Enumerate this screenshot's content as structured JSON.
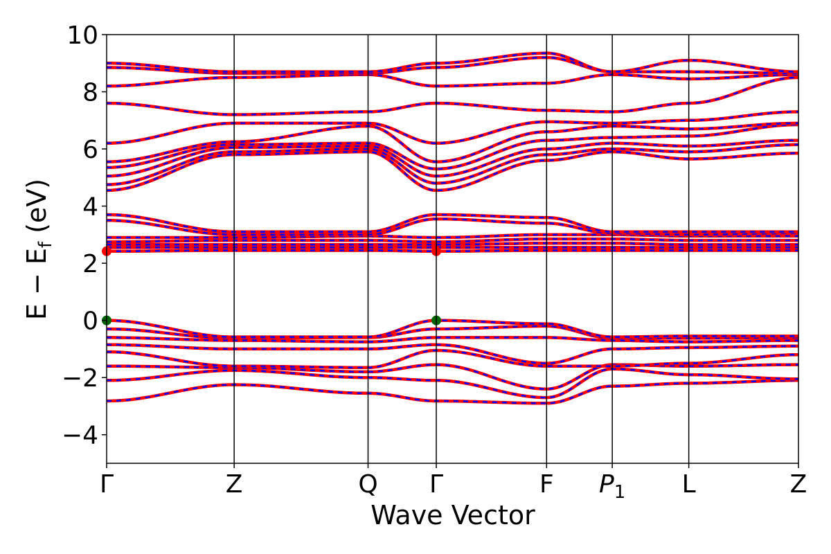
{
  "chart_data": {
    "type": "line",
    "xlabel": "Wave Vector",
    "ylabel": "E − E",
    "ylabel_subscript": "f",
    "ylabel_unit": " (eV)",
    "ylim": [
      -5,
      10
    ],
    "yticks": [
      -4,
      -2,
      0,
      2,
      4,
      6,
      8,
      10
    ],
    "ytick_labels": [
      "−4",
      "−2",
      "0",
      "2",
      "4",
      "6",
      "8",
      "10"
    ],
    "xlim": [
      0,
      10.85
    ],
    "kpoints": [
      {
        "label": "Γ",
        "x": 0
      },
      {
        "label": "Z",
        "x": 2.0
      },
      {
        "label": "Q",
        "x": 4.1
      },
      {
        "label": "Γ",
        "x": 5.17
      },
      {
        "label": "F",
        "x": 6.9
      },
      {
        "label": "P",
        "sub": "1",
        "x": 7.93
      },
      {
        "label": "L",
        "x": 9.13
      },
      {
        "label": "Z",
        "x": 10.85
      }
    ],
    "grid": false,
    "series_style": {
      "line_color": "#ff0000",
      "dash_color": "#0000ff"
    },
    "band_edges": [
      {
        "name": "cbm",
        "color": "#ff0000",
        "points": [
          [
            0,
            2.42
          ],
          [
            5.17,
            2.42
          ]
        ]
      },
      {
        "name": "vbm",
        "color": "#006400",
        "points": [
          [
            0,
            0.0
          ],
          [
            5.17,
            0.0
          ]
        ]
      }
    ],
    "series": [
      {
        "values": [
          [
            0,
            -2.82
          ],
          [
            2.0,
            -2.25
          ],
          [
            4.1,
            -2.55
          ],
          [
            5.17,
            -2.82
          ],
          [
            6.9,
            -2.9
          ],
          [
            7.93,
            -2.3
          ],
          [
            9.13,
            -2.2
          ],
          [
            10.85,
            -2.1
          ]
        ]
      },
      {
        "values": [
          [
            0,
            -2.1
          ],
          [
            2.0,
            -1.75
          ],
          [
            4.1,
            -2.0
          ],
          [
            5.17,
            -2.1
          ],
          [
            6.9,
            -2.7
          ],
          [
            7.93,
            -1.7
          ],
          [
            9.13,
            -1.9
          ],
          [
            10.85,
            -2.05
          ]
        ]
      },
      {
        "values": [
          [
            0,
            -1.6
          ],
          [
            2.0,
            -1.65
          ],
          [
            4.1,
            -1.8
          ],
          [
            5.17,
            -1.55
          ],
          [
            6.9,
            -2.4
          ],
          [
            7.93,
            -1.55
          ],
          [
            9.13,
            -1.6
          ],
          [
            10.85,
            -1.55
          ]
        ]
      },
      {
        "values": [
          [
            0,
            -1.1
          ],
          [
            2.0,
            -1.6
          ],
          [
            4.1,
            -1.65
          ],
          [
            5.17,
            -1.05
          ],
          [
            6.9,
            -1.6
          ],
          [
            7.93,
            -1.6
          ],
          [
            9.13,
            -1.5
          ],
          [
            10.85,
            -1.2
          ]
        ]
      },
      {
        "values": [
          [
            0,
            -0.85
          ],
          [
            2.0,
            -1.0
          ],
          [
            4.1,
            -1.0
          ],
          [
            5.17,
            -0.85
          ],
          [
            6.9,
            -1.5
          ],
          [
            7.93,
            -1.0
          ],
          [
            9.13,
            -0.95
          ],
          [
            10.85,
            -0.9
          ]
        ]
      },
      {
        "values": [
          [
            0,
            -0.6
          ],
          [
            2.0,
            -0.7
          ],
          [
            4.1,
            -0.75
          ],
          [
            5.17,
            -0.6
          ],
          [
            6.9,
            -0.6
          ],
          [
            7.93,
            -0.7
          ],
          [
            9.13,
            -0.75
          ],
          [
            10.85,
            -0.7
          ]
        ]
      },
      {
        "values": [
          [
            0,
            -0.3
          ],
          [
            2.0,
            -0.62
          ],
          [
            4.1,
            -0.6
          ],
          [
            5.17,
            -0.3
          ],
          [
            6.9,
            -0.2
          ],
          [
            7.93,
            -0.62
          ],
          [
            9.13,
            -0.62
          ],
          [
            10.85,
            -0.6
          ]
        ]
      },
      {
        "values": [
          [
            0,
            0.0
          ],
          [
            2.0,
            -0.58
          ],
          [
            4.1,
            -0.58
          ],
          [
            5.17,
            0.0
          ],
          [
            6.9,
            -0.12
          ],
          [
            7.93,
            -0.58
          ],
          [
            9.13,
            -0.55
          ],
          [
            10.85,
            -0.55
          ]
        ]
      },
      {
        "values": [
          [
            0,
            2.42
          ],
          [
            2.0,
            2.45
          ],
          [
            4.1,
            2.45
          ],
          [
            5.17,
            2.42
          ],
          [
            6.9,
            2.45
          ],
          [
            7.93,
            2.45
          ],
          [
            9.13,
            2.45
          ],
          [
            10.85,
            2.45
          ]
        ]
      },
      {
        "values": [
          [
            0,
            2.55
          ],
          [
            2.0,
            2.55
          ],
          [
            4.1,
            2.55
          ],
          [
            5.17,
            2.55
          ],
          [
            6.9,
            2.55
          ],
          [
            7.93,
            2.55
          ],
          [
            9.13,
            2.55
          ],
          [
            10.85,
            2.55
          ]
        ]
      },
      {
        "values": [
          [
            0,
            2.65
          ],
          [
            2.0,
            2.65
          ],
          [
            4.1,
            2.65
          ],
          [
            5.17,
            2.65
          ],
          [
            6.9,
            2.7
          ],
          [
            7.93,
            2.7
          ],
          [
            9.13,
            2.65
          ],
          [
            10.85,
            2.65
          ]
        ]
      },
      {
        "values": [
          [
            0,
            2.75
          ],
          [
            2.0,
            2.8
          ],
          [
            4.1,
            2.8
          ],
          [
            5.17,
            2.75
          ],
          [
            6.9,
            2.85
          ],
          [
            7.93,
            2.85
          ],
          [
            9.13,
            2.8
          ],
          [
            10.85,
            2.8
          ]
        ]
      },
      {
        "values": [
          [
            0,
            2.9
          ],
          [
            2.0,
            2.9
          ],
          [
            4.1,
            2.95
          ],
          [
            5.17,
            2.9
          ],
          [
            6.9,
            3.0
          ],
          [
            7.93,
            3.0
          ],
          [
            9.13,
            2.95
          ],
          [
            10.85,
            2.95
          ]
        ]
      },
      {
        "values": [
          [
            0,
            3.5
          ],
          [
            2.0,
            3.0
          ],
          [
            4.1,
            3.0
          ],
          [
            5.17,
            3.55
          ],
          [
            6.9,
            3.4
          ],
          [
            7.93,
            3.05
          ],
          [
            9.13,
            3.0
          ],
          [
            10.85,
            3.05
          ]
        ]
      },
      {
        "values": [
          [
            0,
            3.7
          ],
          [
            2.0,
            3.1
          ],
          [
            4.1,
            3.1
          ],
          [
            5.17,
            3.7
          ],
          [
            6.9,
            3.6
          ],
          [
            7.93,
            3.1
          ],
          [
            9.13,
            3.1
          ],
          [
            10.85,
            3.1
          ]
        ]
      },
      {
        "values": [
          [
            0,
            4.55
          ],
          [
            2.0,
            5.8
          ],
          [
            4.1,
            5.9
          ],
          [
            5.17,
            4.55
          ],
          [
            6.9,
            5.6
          ],
          [
            7.93,
            5.9
          ],
          [
            9.13,
            5.65
          ],
          [
            10.85,
            5.85
          ]
        ]
      },
      {
        "values": [
          [
            0,
            4.75
          ],
          [
            2.0,
            5.9
          ],
          [
            4.1,
            6.0
          ],
          [
            5.17,
            4.8
          ],
          [
            6.9,
            5.8
          ],
          [
            7.93,
            6.0
          ],
          [
            9.13,
            5.9
          ],
          [
            10.85,
            6.15
          ]
        ]
      },
      {
        "values": [
          [
            0,
            5.05
          ],
          [
            2.0,
            6.05
          ],
          [
            4.1,
            6.1
          ],
          [
            5.17,
            5.05
          ],
          [
            6.9,
            6.0
          ],
          [
            7.93,
            6.2
          ],
          [
            9.13,
            6.1
          ],
          [
            10.85,
            6.3
          ]
        ]
      },
      {
        "values": [
          [
            0,
            5.35
          ],
          [
            2.0,
            6.15
          ],
          [
            4.1,
            6.2
          ],
          [
            5.17,
            5.3
          ],
          [
            6.9,
            6.3
          ],
          [
            7.93,
            6.4
          ],
          [
            9.13,
            6.45
          ],
          [
            10.85,
            6.85
          ]
        ]
      },
      {
        "values": [
          [
            0,
            5.55
          ],
          [
            2.0,
            6.25
          ],
          [
            4.1,
            6.8
          ],
          [
            5.17,
            5.55
          ],
          [
            6.9,
            6.6
          ],
          [
            7.93,
            6.8
          ],
          [
            9.13,
            6.7
          ],
          [
            10.85,
            6.9
          ]
        ]
      },
      {
        "values": [
          [
            0,
            6.2
          ],
          [
            2.0,
            6.9
          ],
          [
            4.1,
            6.9
          ],
          [
            5.17,
            6.2
          ],
          [
            6.9,
            6.95
          ],
          [
            7.93,
            6.9
          ],
          [
            9.13,
            7.0
          ],
          [
            10.85,
            7.3
          ]
        ]
      },
      {
        "values": [
          [
            0,
            7.6
          ],
          [
            2.0,
            7.2
          ],
          [
            4.1,
            7.3
          ],
          [
            5.17,
            7.6
          ],
          [
            6.9,
            7.35
          ],
          [
            7.93,
            7.3
          ],
          [
            9.13,
            7.6
          ],
          [
            10.85,
            8.5
          ]
        ]
      },
      {
        "values": [
          [
            0,
            8.2
          ],
          [
            2.0,
            8.5
          ],
          [
            4.1,
            8.6
          ],
          [
            5.17,
            8.2
          ],
          [
            6.9,
            8.3
          ],
          [
            7.93,
            8.6
          ],
          [
            9.13,
            8.45
          ],
          [
            10.85,
            8.6
          ]
        ]
      },
      {
        "values": [
          [
            0,
            8.85
          ],
          [
            2.0,
            8.65
          ],
          [
            4.1,
            8.65
          ],
          [
            5.17,
            8.85
          ],
          [
            6.9,
            9.2
          ],
          [
            7.93,
            8.7
          ],
          [
            9.13,
            8.7
          ],
          [
            10.85,
            8.65
          ]
        ]
      },
      {
        "values": [
          [
            0,
            9.0
          ],
          [
            2.0,
            8.7
          ],
          [
            4.1,
            8.7
          ],
          [
            5.17,
            9.0
          ],
          [
            6.9,
            9.35
          ],
          [
            7.93,
            8.7
          ],
          [
            9.13,
            9.1
          ],
          [
            10.85,
            8.7
          ]
        ]
      }
    ]
  }
}
